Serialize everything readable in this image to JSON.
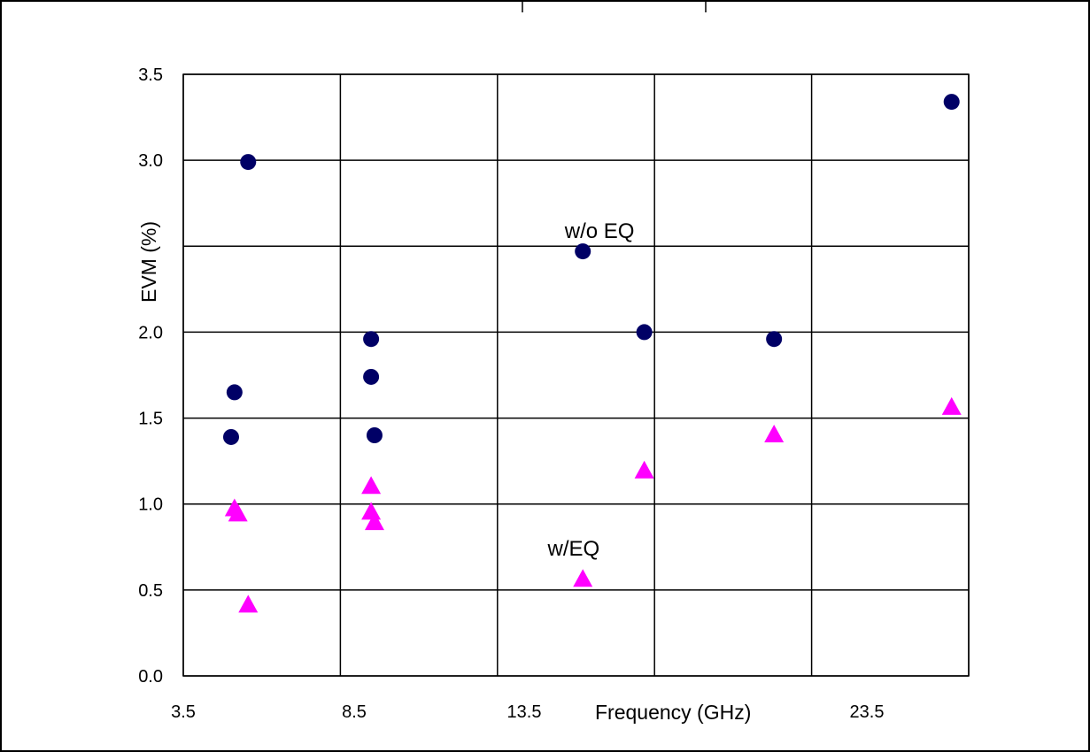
{
  "chart_data": {
    "type": "scatter",
    "title": "",
    "xlabel": "Frequency (GHz)",
    "ylabel": "EVM (%)",
    "xlim": [
      3.5,
      26.5
    ],
    "ylim": [
      0.0,
      3.5
    ],
    "x_tick_labels": [
      "3.5",
      "8.5",
      "13.5",
      "23.5"
    ],
    "y_tick_labels": [
      "0.0",
      "0.5",
      "1.0",
      "1.5",
      "2.0",
      "",
      "3.0",
      "3.5"
    ],
    "grid": true,
    "series": [
      {
        "name": "w/o EQ",
        "marker": "circle",
        "color": "#000066",
        "points": [
          {
            "x": 5.4,
            "y": 2.99
          },
          {
            "x": 5.0,
            "y": 1.65
          },
          {
            "x": 4.9,
            "y": 1.39
          },
          {
            "x": 9.0,
            "y": 1.96
          },
          {
            "x": 9.0,
            "y": 1.74
          },
          {
            "x": 9.1,
            "y": 1.4
          },
          {
            "x": 15.2,
            "y": 2.47
          },
          {
            "x": 17.0,
            "y": 2.0
          },
          {
            "x": 20.8,
            "y": 1.96
          },
          {
            "x": 26.0,
            "y": 3.34
          }
        ]
      },
      {
        "name": "w/EQ",
        "marker": "triangle",
        "color": "#ff00ff",
        "points": [
          {
            "x": 5.0,
            "y": 0.97
          },
          {
            "x": 5.1,
            "y": 0.94
          },
          {
            "x": 5.4,
            "y": 0.41
          },
          {
            "x": 9.0,
            "y": 1.1
          },
          {
            "x": 9.0,
            "y": 0.95
          },
          {
            "x": 9.1,
            "y": 0.89
          },
          {
            "x": 15.2,
            "y": 0.56
          },
          {
            "x": 17.0,
            "y": 1.19
          },
          {
            "x": 20.8,
            "y": 1.4
          },
          {
            "x": 26.0,
            "y": 1.56
          }
        ]
      }
    ],
    "annotations": [
      {
        "text": "w/o EQ",
        "x": 15.5,
        "y": 2.59
      },
      {
        "text": "w/EQ",
        "x": 15.0,
        "y": 0.74
      }
    ]
  }
}
